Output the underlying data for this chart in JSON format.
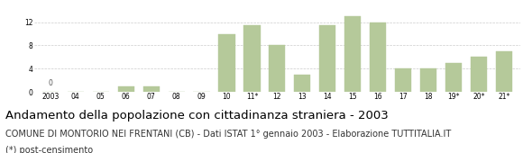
{
  "categories": [
    "2003",
    "04",
    "05",
    "06",
    "07",
    "08",
    "09",
    "10",
    "11*",
    "12",
    "13",
    "14",
    "15",
    "16",
    "17",
    "18",
    "19*",
    "20*",
    "21*"
  ],
  "values": [
    0,
    0,
    0,
    1,
    1,
    0,
    0,
    10,
    11.5,
    8,
    3,
    11.5,
    13,
    12,
    4,
    4,
    5,
    6,
    7
  ],
  "bar_color": "#b5c99a",
  "bar_edge_color": "#b5c99a",
  "background_color": "#ffffff",
  "grid_color": "#cccccc",
  "title": "Andamento della popolazione con cittadinanza straniera - 2003",
  "subtitle": "COMUNE DI MONTORIO NEI FRENTANI (CB) - Dati ISTAT 1° gennaio 2003 - Elaborazione TUTTITALIA.IT",
  "footnote": "(*) post-censimento",
  "title_fontsize": 9.5,
  "subtitle_fontsize": 7.0,
  "footnote_fontsize": 7.0,
  "tick_fontsize": 5.5,
  "ytick_fontsize": 5.5,
  "yticks": [
    0,
    4,
    8,
    12
  ],
  "ylim": [
    0,
    14.5
  ],
  "zero_annotation": "0"
}
